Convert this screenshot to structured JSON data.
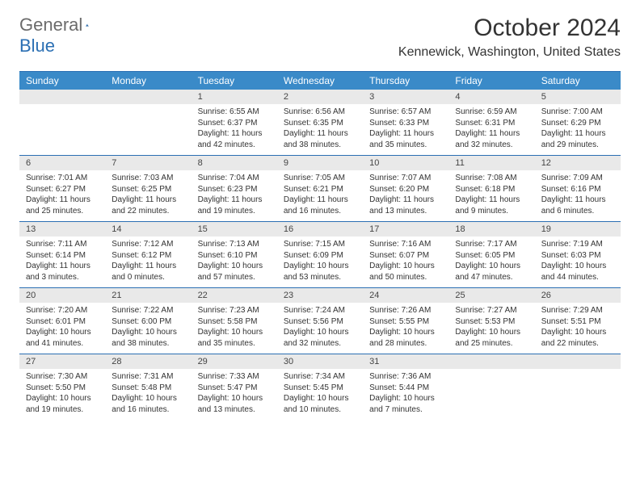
{
  "brand": {
    "word1": "General",
    "word2": "Blue"
  },
  "title": "October 2024",
  "location": "Kennewick, Washington, United States",
  "colors": {
    "header_bg": "#3a8ac8",
    "rule": "#2b6fb3",
    "strip": "#e9e9e9"
  },
  "weekdays": [
    "Sunday",
    "Monday",
    "Tuesday",
    "Wednesday",
    "Thursday",
    "Friday",
    "Saturday"
  ],
  "weeks": [
    [
      {
        "n": "",
        "sr": "",
        "ss": "",
        "d1": "",
        "d2": ""
      },
      {
        "n": "",
        "sr": "",
        "ss": "",
        "d1": "",
        "d2": ""
      },
      {
        "n": "1",
        "sr": "Sunrise: 6:55 AM",
        "ss": "Sunset: 6:37 PM",
        "d1": "Daylight: 11 hours",
        "d2": "and 42 minutes."
      },
      {
        "n": "2",
        "sr": "Sunrise: 6:56 AM",
        "ss": "Sunset: 6:35 PM",
        "d1": "Daylight: 11 hours",
        "d2": "and 38 minutes."
      },
      {
        "n": "3",
        "sr": "Sunrise: 6:57 AM",
        "ss": "Sunset: 6:33 PM",
        "d1": "Daylight: 11 hours",
        "d2": "and 35 minutes."
      },
      {
        "n": "4",
        "sr": "Sunrise: 6:59 AM",
        "ss": "Sunset: 6:31 PM",
        "d1": "Daylight: 11 hours",
        "d2": "and 32 minutes."
      },
      {
        "n": "5",
        "sr": "Sunrise: 7:00 AM",
        "ss": "Sunset: 6:29 PM",
        "d1": "Daylight: 11 hours",
        "d2": "and 29 minutes."
      }
    ],
    [
      {
        "n": "6",
        "sr": "Sunrise: 7:01 AM",
        "ss": "Sunset: 6:27 PM",
        "d1": "Daylight: 11 hours",
        "d2": "and 25 minutes."
      },
      {
        "n": "7",
        "sr": "Sunrise: 7:03 AM",
        "ss": "Sunset: 6:25 PM",
        "d1": "Daylight: 11 hours",
        "d2": "and 22 minutes."
      },
      {
        "n": "8",
        "sr": "Sunrise: 7:04 AM",
        "ss": "Sunset: 6:23 PM",
        "d1": "Daylight: 11 hours",
        "d2": "and 19 minutes."
      },
      {
        "n": "9",
        "sr": "Sunrise: 7:05 AM",
        "ss": "Sunset: 6:21 PM",
        "d1": "Daylight: 11 hours",
        "d2": "and 16 minutes."
      },
      {
        "n": "10",
        "sr": "Sunrise: 7:07 AM",
        "ss": "Sunset: 6:20 PM",
        "d1": "Daylight: 11 hours",
        "d2": "and 13 minutes."
      },
      {
        "n": "11",
        "sr": "Sunrise: 7:08 AM",
        "ss": "Sunset: 6:18 PM",
        "d1": "Daylight: 11 hours",
        "d2": "and 9 minutes."
      },
      {
        "n": "12",
        "sr": "Sunrise: 7:09 AM",
        "ss": "Sunset: 6:16 PM",
        "d1": "Daylight: 11 hours",
        "d2": "and 6 minutes."
      }
    ],
    [
      {
        "n": "13",
        "sr": "Sunrise: 7:11 AM",
        "ss": "Sunset: 6:14 PM",
        "d1": "Daylight: 11 hours",
        "d2": "and 3 minutes."
      },
      {
        "n": "14",
        "sr": "Sunrise: 7:12 AM",
        "ss": "Sunset: 6:12 PM",
        "d1": "Daylight: 11 hours",
        "d2": "and 0 minutes."
      },
      {
        "n": "15",
        "sr": "Sunrise: 7:13 AM",
        "ss": "Sunset: 6:10 PM",
        "d1": "Daylight: 10 hours",
        "d2": "and 57 minutes."
      },
      {
        "n": "16",
        "sr": "Sunrise: 7:15 AM",
        "ss": "Sunset: 6:09 PM",
        "d1": "Daylight: 10 hours",
        "d2": "and 53 minutes."
      },
      {
        "n": "17",
        "sr": "Sunrise: 7:16 AM",
        "ss": "Sunset: 6:07 PM",
        "d1": "Daylight: 10 hours",
        "d2": "and 50 minutes."
      },
      {
        "n": "18",
        "sr": "Sunrise: 7:17 AM",
        "ss": "Sunset: 6:05 PM",
        "d1": "Daylight: 10 hours",
        "d2": "and 47 minutes."
      },
      {
        "n": "19",
        "sr": "Sunrise: 7:19 AM",
        "ss": "Sunset: 6:03 PM",
        "d1": "Daylight: 10 hours",
        "d2": "and 44 minutes."
      }
    ],
    [
      {
        "n": "20",
        "sr": "Sunrise: 7:20 AM",
        "ss": "Sunset: 6:01 PM",
        "d1": "Daylight: 10 hours",
        "d2": "and 41 minutes."
      },
      {
        "n": "21",
        "sr": "Sunrise: 7:22 AM",
        "ss": "Sunset: 6:00 PM",
        "d1": "Daylight: 10 hours",
        "d2": "and 38 minutes."
      },
      {
        "n": "22",
        "sr": "Sunrise: 7:23 AM",
        "ss": "Sunset: 5:58 PM",
        "d1": "Daylight: 10 hours",
        "d2": "and 35 minutes."
      },
      {
        "n": "23",
        "sr": "Sunrise: 7:24 AM",
        "ss": "Sunset: 5:56 PM",
        "d1": "Daylight: 10 hours",
        "d2": "and 32 minutes."
      },
      {
        "n": "24",
        "sr": "Sunrise: 7:26 AM",
        "ss": "Sunset: 5:55 PM",
        "d1": "Daylight: 10 hours",
        "d2": "and 28 minutes."
      },
      {
        "n": "25",
        "sr": "Sunrise: 7:27 AM",
        "ss": "Sunset: 5:53 PM",
        "d1": "Daylight: 10 hours",
        "d2": "and 25 minutes."
      },
      {
        "n": "26",
        "sr": "Sunrise: 7:29 AM",
        "ss": "Sunset: 5:51 PM",
        "d1": "Daylight: 10 hours",
        "d2": "and 22 minutes."
      }
    ],
    [
      {
        "n": "27",
        "sr": "Sunrise: 7:30 AM",
        "ss": "Sunset: 5:50 PM",
        "d1": "Daylight: 10 hours",
        "d2": "and 19 minutes."
      },
      {
        "n": "28",
        "sr": "Sunrise: 7:31 AM",
        "ss": "Sunset: 5:48 PM",
        "d1": "Daylight: 10 hours",
        "d2": "and 16 minutes."
      },
      {
        "n": "29",
        "sr": "Sunrise: 7:33 AM",
        "ss": "Sunset: 5:47 PM",
        "d1": "Daylight: 10 hours",
        "d2": "and 13 minutes."
      },
      {
        "n": "30",
        "sr": "Sunrise: 7:34 AM",
        "ss": "Sunset: 5:45 PM",
        "d1": "Daylight: 10 hours",
        "d2": "and 10 minutes."
      },
      {
        "n": "31",
        "sr": "Sunrise: 7:36 AM",
        "ss": "Sunset: 5:44 PM",
        "d1": "Daylight: 10 hours",
        "d2": "and 7 minutes."
      },
      {
        "n": "",
        "sr": "",
        "ss": "",
        "d1": "",
        "d2": ""
      },
      {
        "n": "",
        "sr": "",
        "ss": "",
        "d1": "",
        "d2": ""
      }
    ]
  ]
}
